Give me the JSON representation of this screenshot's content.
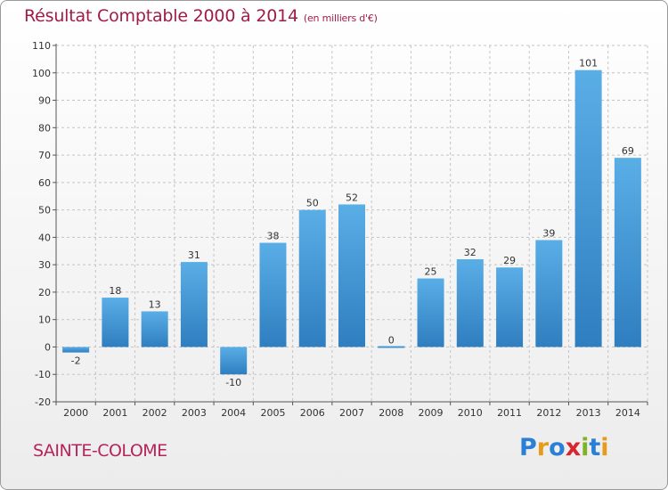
{
  "header": {
    "title": "Résultat Comptable 2000 à 2014",
    "subtitle": "(en milliers d'€)"
  },
  "footer": {
    "commune": "SAINTE-COLOME",
    "brand": "Proxiti",
    "brand_letters": [
      "P",
      "r",
      "o",
      "x",
      "i",
      "t",
      "i"
    ],
    "brand_colors": [
      "#2a7fd6",
      "#e89a1a",
      "#2a7fd6",
      "#d8262e",
      "#7fb224",
      "#2a7fd6",
      "#e89a1a"
    ]
  },
  "chart_data": {
    "type": "bar",
    "title": "Résultat Comptable 2000 à 2014",
    "subtitle": "(en milliers d'€)",
    "xlabel": "",
    "ylabel": "",
    "categories": [
      "2000",
      "2001",
      "2002",
      "2003",
      "2004",
      "2005",
      "2006",
      "2007",
      "2008",
      "2009",
      "2010",
      "2011",
      "2012",
      "2013",
      "2014"
    ],
    "values": [
      -2,
      18,
      13,
      31,
      -10,
      38,
      50,
      52,
      0,
      25,
      32,
      29,
      39,
      101,
      69
    ],
    "value_labels": [
      "-2",
      "18",
      "13",
      "31",
      "-10",
      "38",
      "50",
      "52",
      "0",
      "25",
      "32",
      "29",
      "39",
      "101",
      "69"
    ],
    "ylim": [
      -20,
      110
    ],
    "yticks": [
      -20,
      -10,
      0,
      10,
      20,
      30,
      40,
      50,
      60,
      70,
      80,
      90,
      100,
      110
    ],
    "ytick_labels": [
      "-20",
      "-10",
      "0",
      "10",
      "20",
      "30",
      "40",
      "50",
      "60",
      "70",
      "80",
      "90",
      "100",
      "110"
    ],
    "grid": true,
    "bar_color_top": "#5aaee6",
    "bar_color_bottom": "#2f7ec0"
  }
}
